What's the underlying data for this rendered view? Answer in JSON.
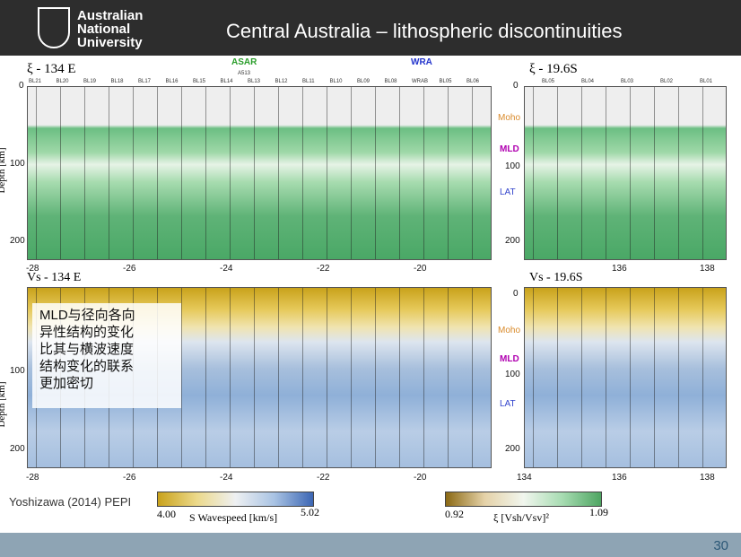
{
  "header": {
    "logo_lines": [
      "Australian",
      "National",
      "University"
    ],
    "title": "Central Australia – lithospheric discontinuities"
  },
  "networks": {
    "asar": "ASAR",
    "wra": "WRA",
    "a513": "A513"
  },
  "panels": {
    "top_left": {
      "title": "ξ - 134 E",
      "xticks": [
        "-28",
        "-26",
        "-24",
        "-22",
        "-20"
      ],
      "yticks": [
        "0",
        "100",
        "200"
      ],
      "ylabel": "Depth [km]"
    },
    "top_right": {
      "title": "ξ - 19.6S",
      "xticks": [
        "136",
        "138"
      ],
      "yticks": [
        "0",
        "100",
        "200"
      ]
    },
    "bottom_left": {
      "title": "Vs - 134 E",
      "xticks": [
        "-28",
        "-26",
        "-24",
        "-22",
        "-20"
      ],
      "yticks": [
        "100",
        "200"
      ],
      "ylabel": "Depth [km]"
    },
    "bottom_right": {
      "title": "Vs - 19.6S",
      "xticks": [
        "134",
        "136",
        "138"
      ],
      "yticks": [
        "0",
        "100",
        "200"
      ]
    }
  },
  "stations_left": [
    "BL21",
    "BL20",
    "BL19",
    "BL18",
    "BL17",
    "BL16",
    "BL15",
    "BL14",
    "BL13",
    "BL12",
    "BL11",
    "BL10",
    "BL09",
    "BL08",
    "WRAB",
    "BL05",
    "BL06"
  ],
  "stations_right": [
    "BL05",
    "BL04",
    "BL03",
    "BL02",
    "BL01"
  ],
  "markers": {
    "moho": "Moho",
    "mld": "MLD",
    "lat": "LAT"
  },
  "note": [
    "MLD与径向各向",
    "异性结构的变化",
    "比其与横波速度",
    "结构变化的联系",
    "更加密切"
  ],
  "citation": "Yoshizawa (2014) PEPI",
  "colorbars": {
    "vs": {
      "min": "4.00",
      "max": "5.02",
      "label": "S Wavespeed [km/s]"
    },
    "xi": {
      "min": "0.92",
      "max": "1.09",
      "label": "ξ  [Vsh/Vsv]²"
    }
  },
  "page_number": "30"
}
